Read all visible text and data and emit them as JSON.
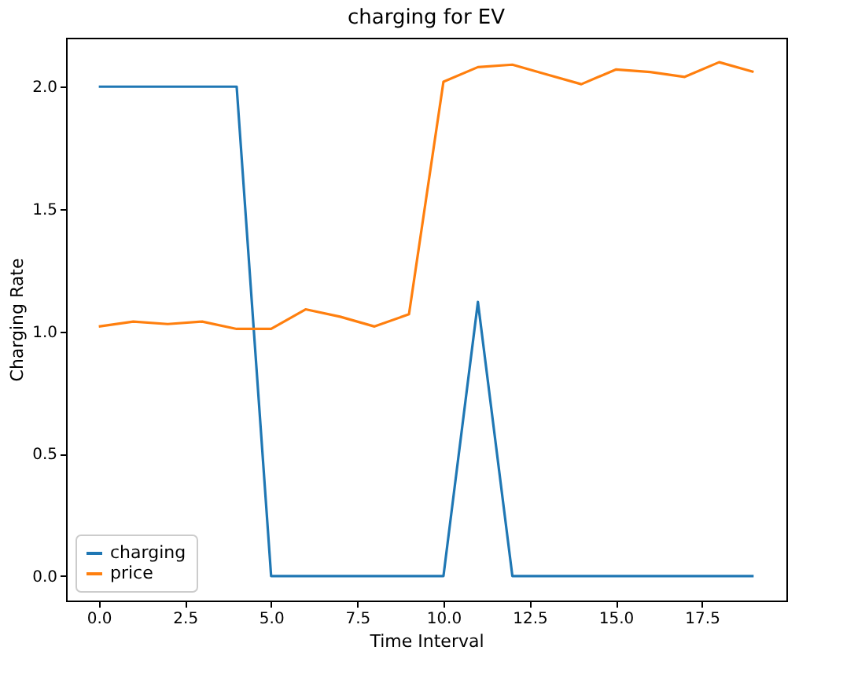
{
  "chart_data": {
    "type": "line",
    "title": "charging for EV",
    "xlabel": "Time Interval",
    "ylabel": "Charging Rate",
    "x": [
      0,
      1,
      2,
      3,
      4,
      5,
      6,
      7,
      8,
      9,
      10,
      11,
      12,
      13,
      14,
      15,
      16,
      17,
      18,
      19
    ],
    "series": [
      {
        "name": "charging",
        "color": "#1f77b4",
        "values": [
          2,
          2,
          2,
          2,
          2,
          0,
          0,
          0,
          0,
          0,
          0,
          1.12,
          0,
          0,
          0,
          0,
          0,
          0,
          0,
          0
        ]
      },
      {
        "name": "price",
        "color": "#ff7f0e",
        "values": [
          1.02,
          1.04,
          1.03,
          1.04,
          1.01,
          1.01,
          1.09,
          1.06,
          1.02,
          1.07,
          2.02,
          2.08,
          2.09,
          2.05,
          2.01,
          2.07,
          2.06,
          2.04,
          2.1,
          2.06
        ]
      }
    ],
    "xlim": [
      -0.95,
      19.95
    ],
    "xticks": [
      {
        "value": 0,
        "label": "0.0"
      },
      {
        "value": 2.5,
        "label": "2.5"
      },
      {
        "value": 5,
        "label": "5.0"
      },
      {
        "value": 7.5,
        "label": "7.5"
      },
      {
        "value": 10,
        "label": "10.0"
      },
      {
        "value": 12.5,
        "label": "12.5"
      },
      {
        "value": 15,
        "label": "15.0"
      },
      {
        "value": 17.5,
        "label": "17.5"
      }
    ],
    "ylim": [
      -0.1,
      2.2
    ],
    "yticks": [
      {
        "value": 0,
        "label": "0.0"
      },
      {
        "value": 0.5,
        "label": "0.5"
      },
      {
        "value": 1,
        "label": "1.0"
      },
      {
        "value": 1.5,
        "label": "1.5"
      },
      {
        "value": 2,
        "label": "2.0"
      }
    ],
    "legend": "bottom left",
    "grid": false
  }
}
